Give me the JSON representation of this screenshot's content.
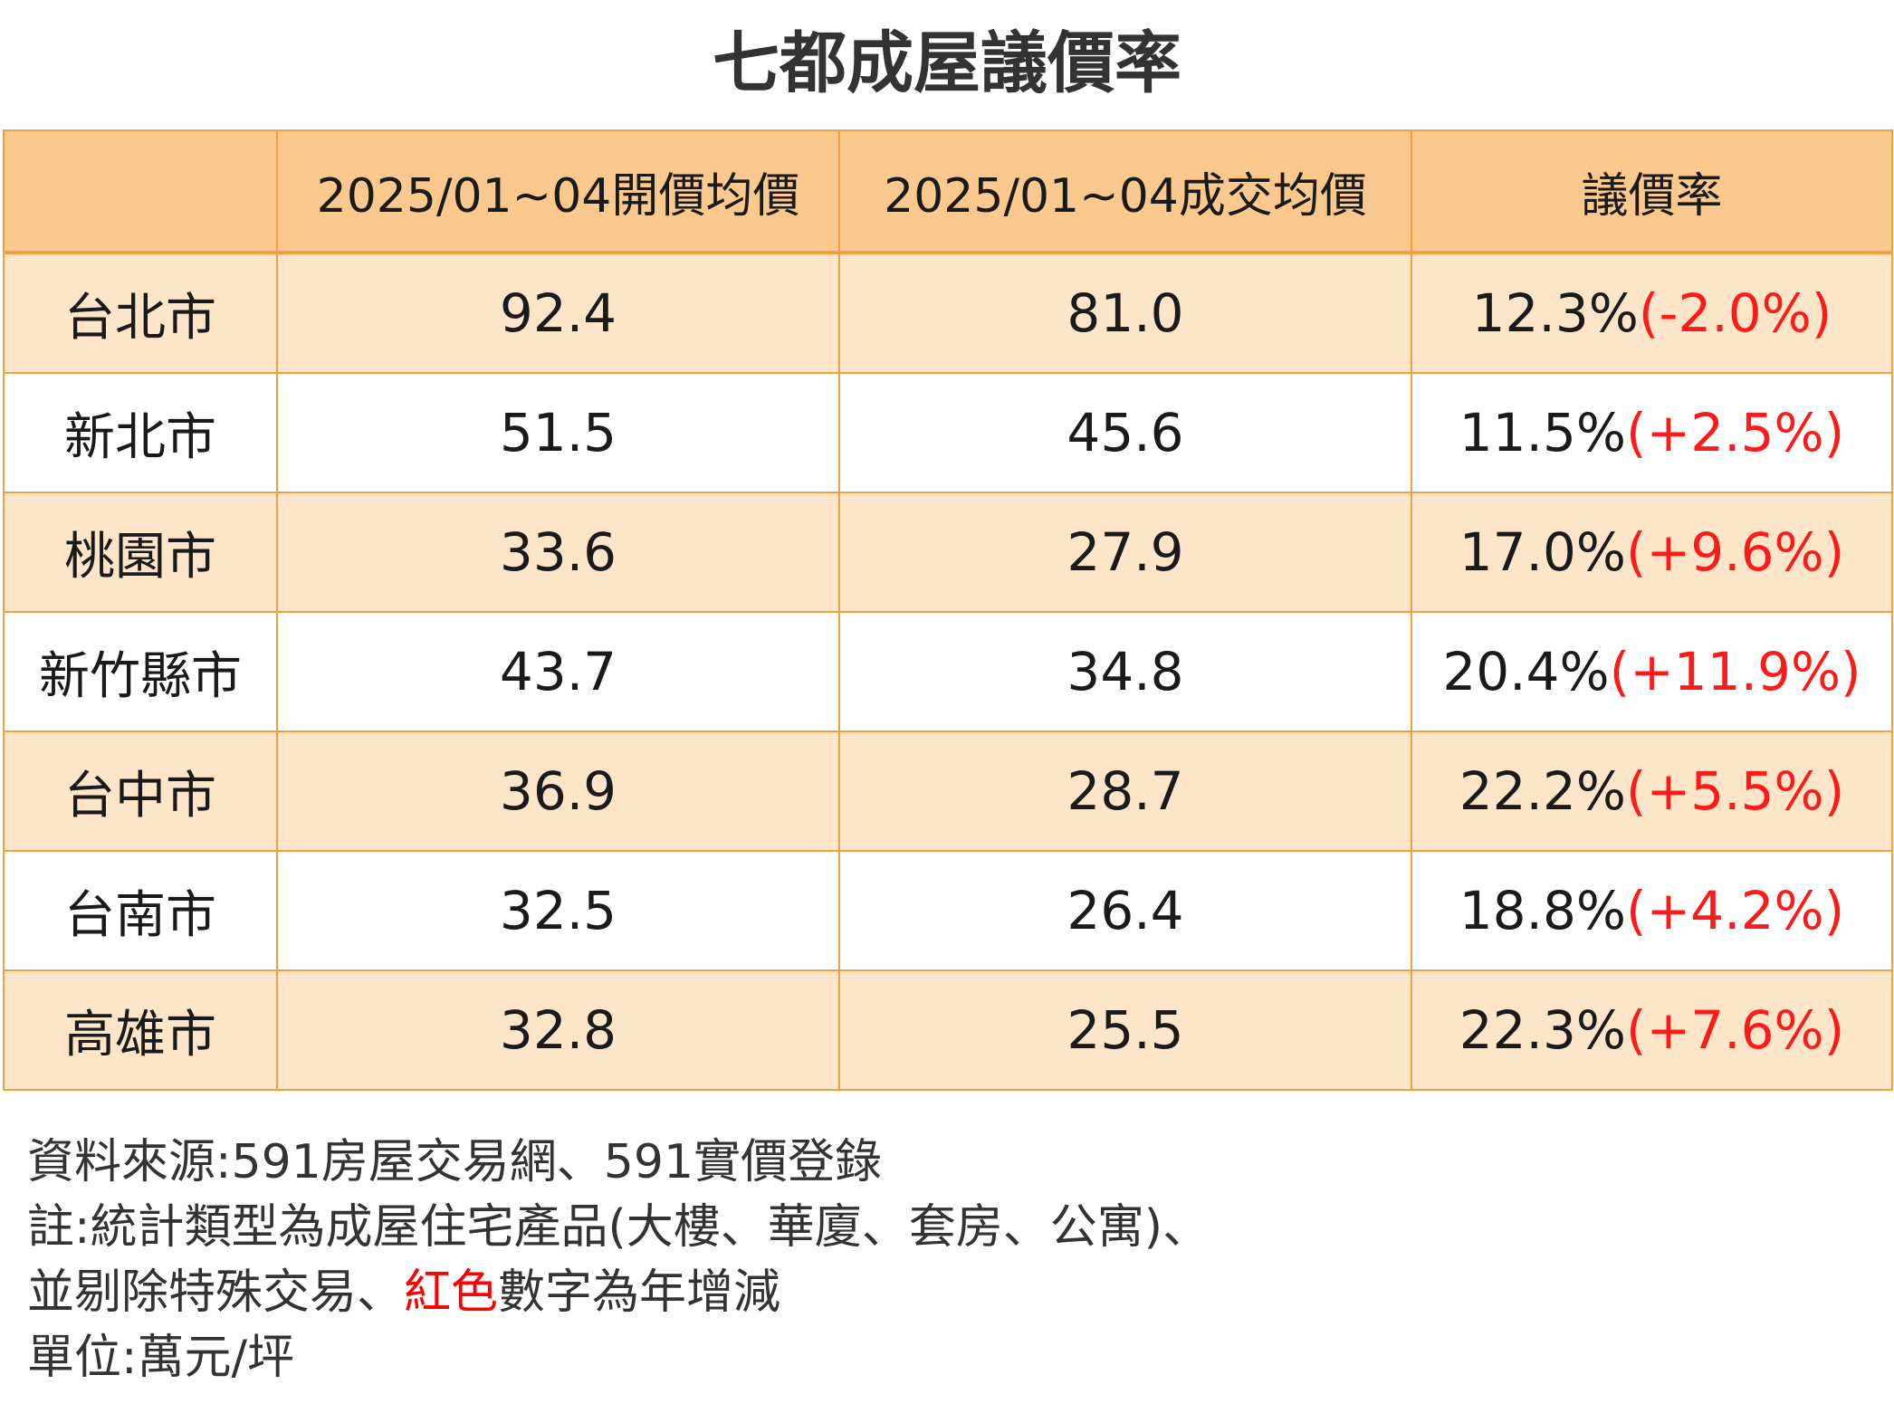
{
  "title": "七都成屋議價率",
  "chart_data": {
    "type": "table",
    "title": "七都成屋議價率",
    "columns": [
      "",
      "2025/01~04開價均價",
      "2025/01~04成交均價",
      "議價率"
    ],
    "rows": [
      {
        "city": "台北市",
        "asking": "92.4",
        "deal": "81.0",
        "rate": "12.3%",
        "change": "(-2.0%)"
      },
      {
        "city": "新北市",
        "asking": "51.5",
        "deal": "45.6",
        "rate": "11.5%",
        "change": "(+2.5%)"
      },
      {
        "city": "桃園市",
        "asking": "33.6",
        "deal": "27.9",
        "rate": "17.0%",
        "change": "(+9.6%)"
      },
      {
        "city": "新竹縣市",
        "asking": "43.7",
        "deal": "34.8",
        "rate": "20.4%",
        "change": "(+11.9%)"
      },
      {
        "city": "台中市",
        "asking": "36.9",
        "deal": "28.7",
        "rate": "22.2%",
        "change": "(+5.5%)"
      },
      {
        "city": "台南市",
        "asking": "32.5",
        "deal": "26.4",
        "rate": "18.8%",
        "change": "(+4.2%)"
      },
      {
        "city": "高雄市",
        "asking": "32.8",
        "deal": "25.5",
        "rate": "22.3%",
        "change": "(+7.6%)"
      }
    ]
  },
  "notes": {
    "source": "資料來源:591房屋交易網、591實價登錄",
    "note_line1": "註:統計類型為成屋住宅產品(大樓、華廈、套房、公寓)、",
    "note_line2_prefix": "並剔除特殊交易、",
    "note_line2_red": "紅色",
    "note_line2_suffix": "數字為年增減",
    "unit": "單位:萬元/坪"
  },
  "colors": {
    "header_bg": "#fbc98e",
    "row_tint": "#fde5c9",
    "border": "#f0a040",
    "change_red": "#ff1a1a"
  }
}
